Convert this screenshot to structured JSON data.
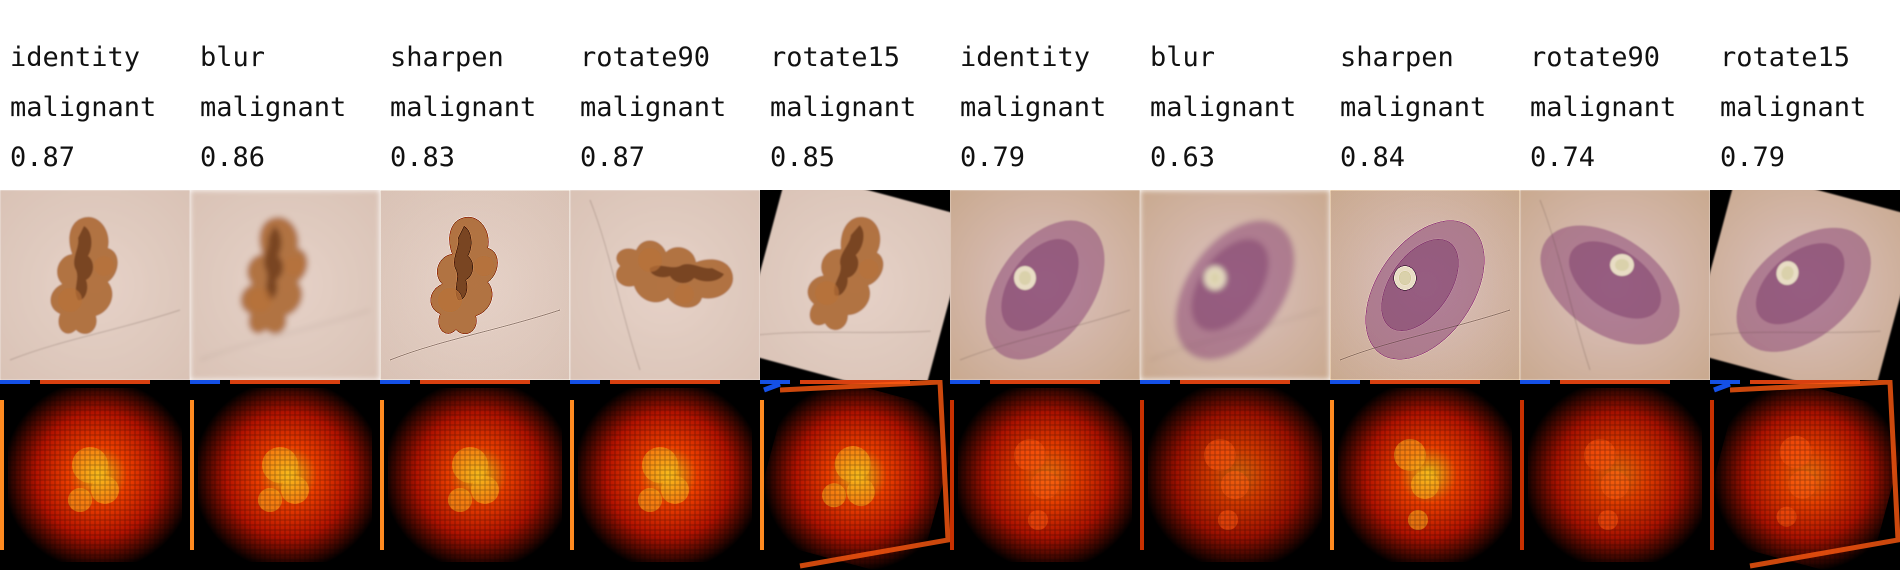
{
  "columns": [
    {
      "augmentation": "identity",
      "prediction": "malignant",
      "score": "0.87",
      "case": 1,
      "rotation": 0,
      "blur": false,
      "sharpen": false
    },
    {
      "augmentation": "blur",
      "prediction": "malignant",
      "score": "0.86",
      "case": 1,
      "rotation": 0,
      "blur": true,
      "sharpen": false
    },
    {
      "augmentation": "sharpen",
      "prediction": "malignant",
      "score": "0.83",
      "case": 1,
      "rotation": 0,
      "blur": false,
      "sharpen": true
    },
    {
      "augmentation": "rotate90",
      "prediction": "malignant",
      "score": "0.87",
      "case": 1,
      "rotation": 90,
      "blur": false,
      "sharpen": false
    },
    {
      "augmentation": "rotate15",
      "prediction": "malignant",
      "score": "0.85",
      "case": 1,
      "rotation": 15,
      "blur": false,
      "sharpen": false
    },
    {
      "augmentation": "identity",
      "prediction": "malignant",
      "score": "0.79",
      "case": 2,
      "rotation": 0,
      "blur": false,
      "sharpen": false
    },
    {
      "augmentation": "blur",
      "prediction": "malignant",
      "score": "0.63",
      "case": 2,
      "rotation": 0,
      "blur": true,
      "sharpen": false
    },
    {
      "augmentation": "sharpen",
      "prediction": "malignant",
      "score": "0.84",
      "case": 2,
      "rotation": 0,
      "blur": false,
      "sharpen": true
    },
    {
      "augmentation": "rotate90",
      "prediction": "malignant",
      "score": "0.74",
      "case": 2,
      "rotation": 90,
      "blur": false,
      "sharpen": false
    },
    {
      "augmentation": "rotate15",
      "prediction": "malignant",
      "score": "0.79",
      "case": 2,
      "rotation": 15,
      "blur": false,
      "sharpen": false
    }
  ],
  "colors": {
    "background": "#ffffff",
    "text": "#111111",
    "case1_skin": "#e6d2c8",
    "case1_lesion": "#a8632c",
    "case2_skin": "#dcc2c0",
    "case2_lesion": "#8e4a78",
    "heat_low": "#000000",
    "heat_mid": "#c01400",
    "heat_high": "#ffd21e",
    "edge_blue": "#1450e6"
  }
}
